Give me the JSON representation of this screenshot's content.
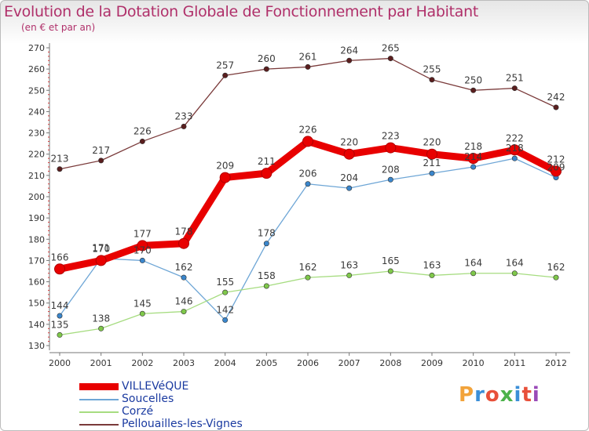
{
  "title": "Evolution de la Dotation Globale de Fonctionnement par Habitant",
  "subtitle": "(en € et par an)",
  "logo": {
    "text": "Proxiti",
    "colors": [
      "#f2a33a",
      "#3b8fd8",
      "#e8503a",
      "#4cb24a",
      "#3b8fd8",
      "#e8503a",
      "#9a4ab8"
    ]
  },
  "chart_data": {
    "type": "line",
    "x": [
      "2000",
      "2001",
      "2002",
      "2003",
      "2004",
      "2005",
      "2006",
      "2007",
      "2008",
      "2009",
      "2010",
      "2011",
      "2012"
    ],
    "ylim": [
      130,
      270
    ],
    "yticks": [
      "130",
      "140",
      "150",
      "160",
      "170",
      "180",
      "190",
      "200",
      "210",
      "220",
      "230",
      "240",
      "250",
      "260",
      "270"
    ],
    "grid": false,
    "legend_position": "bottom-left",
    "series": [
      {
        "name": "VILLEVéQUE",
        "color": "#e80000",
        "marker": "#e80000",
        "thick": true,
        "values": [
          166,
          170,
          177,
          178,
          209,
          211,
          226,
          220,
          223,
          220,
          218,
          222,
          212
        ]
      },
      {
        "name": "Soucelles",
        "color": "#6ea6d6",
        "marker": "#3a86cc",
        "thick": false,
        "values": [
          144,
          171,
          170,
          162,
          142,
          178,
          206,
          204,
          208,
          211,
          214,
          218,
          209
        ]
      },
      {
        "name": "Corzé",
        "color": "#a6dc80",
        "marker": "#7fc84a",
        "thick": false,
        "values": [
          135,
          138,
          145,
          146,
          155,
          158,
          162,
          163,
          165,
          163,
          164,
          164,
          162
        ]
      },
      {
        "name": "Pellouailles-les-Vignes",
        "color": "#7a3a3a",
        "marker": "#5a1e1e",
        "thick": false,
        "values": [
          213,
          217,
          226,
          233,
          257,
          260,
          261,
          264,
          265,
          255,
          250,
          251,
          242
        ]
      }
    ]
  }
}
